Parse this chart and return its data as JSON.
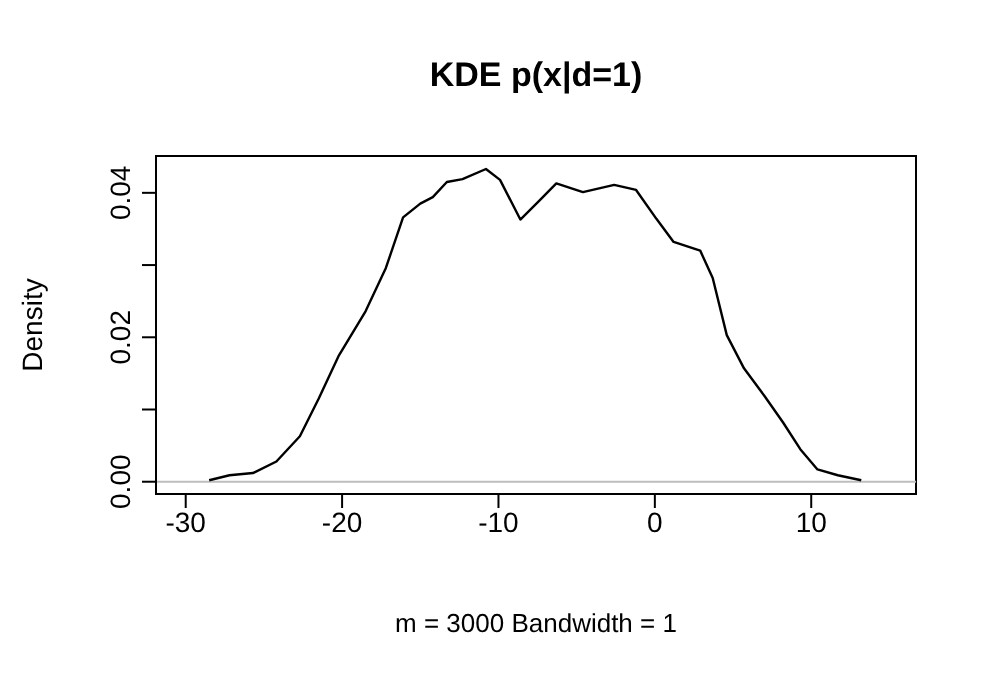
{
  "chart_data": {
    "type": "line",
    "title": "KDE p(x|d=1)",
    "xlabel": "m = 3000   Bandwidth = 1",
    "ylabel": "Density",
    "x": [
      -28.5,
      -27.2,
      -25.7,
      -24.2,
      -22.7,
      -21.5,
      -20.2,
      -18.5,
      -17.2,
      -16.1,
      -15.0,
      -14.2,
      -13.3,
      -12.3,
      -10.8,
      -9.9,
      -8.6,
      -7.4,
      -6.3,
      -4.6,
      -2.6,
      -1.2,
      0.1,
      1.2,
      2.9,
      3.7,
      4.6,
      5.7,
      7.0,
      8.2,
      9.3,
      10.4,
      11.7,
      13.2
    ],
    "series": [
      {
        "color": "#000000",
        "values": [
          0.0002,
          0.0009,
          0.0012,
          0.0028,
          0.0063,
          0.0115,
          0.0175,
          0.0236,
          0.0296,
          0.0366,
          0.0385,
          0.0394,
          0.0415,
          0.0419,
          0.0433,
          0.0418,
          0.0363,
          0.0389,
          0.0413,
          0.0401,
          0.0411,
          0.0404,
          0.0364,
          0.0332,
          0.032,
          0.0282,
          0.0203,
          0.0157,
          0.0119,
          0.0082,
          0.0045,
          0.0017,
          0.0009,
          0.0002
        ]
      }
    ],
    "xlim": [
      -31.9,
      16.7
    ],
    "ylim": [
      -0.0017,
      0.0451
    ],
    "xticks": [
      -30,
      -20,
      -10,
      0,
      10
    ],
    "yticks": [
      {
        "value": 0,
        "label": "0.00"
      },
      {
        "value": 0.01,
        "label": null
      },
      {
        "value": 0.02,
        "label": "0.02"
      },
      {
        "value": 0.03,
        "label": null
      },
      {
        "value": 0.04,
        "label": "0.04"
      }
    ],
    "ref_lines": [
      {
        "axis": "y",
        "value": 0,
        "color": "#bebebe"
      }
    ],
    "grid": false,
    "marker": "none",
    "line_style": "solid"
  }
}
